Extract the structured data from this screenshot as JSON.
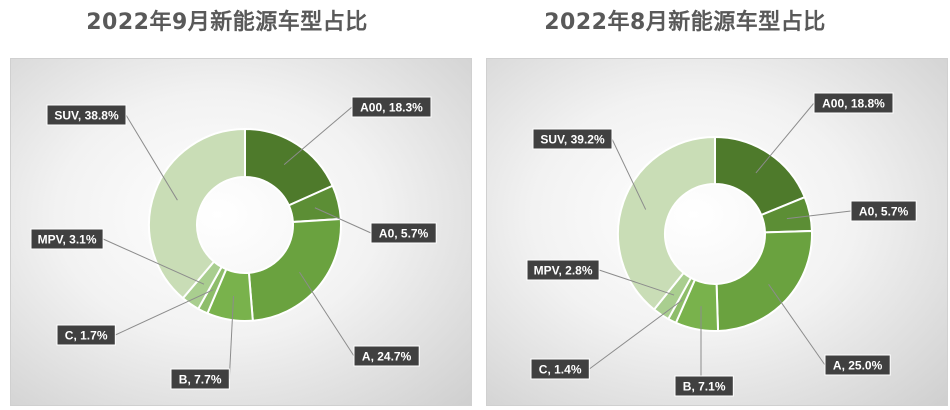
{
  "chart_data": [
    {
      "type": "pie",
      "title": "2022年9月新能源车型占比",
      "categories": [
        "A00",
        "A0",
        "A",
        "B",
        "C",
        "MPV",
        "SUV"
      ],
      "values": [
        18.3,
        5.7,
        24.7,
        7.7,
        1.7,
        3.1,
        38.8
      ],
      "labels": [
        "A00, 18.3%",
        "A0, 5.7%",
        "A, 24.7%",
        "B, 7.7%",
        "C, 1.7%",
        "MPV, 3.1%",
        "SUV, 38.8%"
      ],
      "colors": [
        "#4e7a2b",
        "#5c8e35",
        "#6aa23f",
        "#79b24c",
        "#8ebd6a",
        "#a9ce8f",
        "#c9ddb6"
      ],
      "style": "doughnut",
      "legend": "none"
    },
    {
      "type": "pie",
      "title": "2022年8月新能源车型占比",
      "categories": [
        "A00",
        "A0",
        "A",
        "B",
        "C",
        "MPV",
        "SUV"
      ],
      "values": [
        18.8,
        5.7,
        25.0,
        7.1,
        1.4,
        2.8,
        39.2
      ],
      "labels": [
        "A00, 18.8%",
        "A0, 5.7%",
        "A, 25.0%",
        "B, 7.1%",
        "C, 1.4%",
        "MPV, 2.8%",
        "SUV, 39.2%"
      ],
      "colors": [
        "#4e7a2b",
        "#5c8e35",
        "#6aa23f",
        "#79b24c",
        "#8ebd6a",
        "#a9ce8f",
        "#c9ddb6"
      ],
      "style": "doughnut",
      "legend": "none"
    }
  ]
}
